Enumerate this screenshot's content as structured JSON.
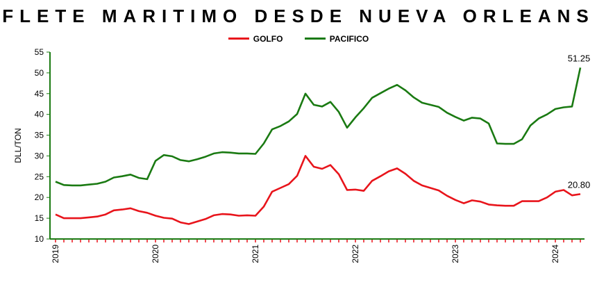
{
  "chart_data": {
    "type": "line",
    "title": "FLETE MARITIMO DESDE NUEVA ORLEANS",
    "ylabel": "DLL/TON",
    "xlabel": "",
    "ylim": [
      10,
      55
    ],
    "yticks": [
      10,
      15,
      20,
      25,
      30,
      35,
      40,
      45,
      50,
      55
    ],
    "xticks": [
      "2019",
      "2020",
      "2021",
      "2022",
      "2023",
      "2024"
    ],
    "x_start": "2019-01",
    "x_step": "month",
    "legend_position": "top-center",
    "grid": false,
    "colors": {
      "GOLFO": "#e8141b",
      "PACIFICO": "#1a7a12",
      "axis": "#1a7a12"
    },
    "series": [
      {
        "name": "GOLFO",
        "values": [
          15.9,
          15.0,
          15.0,
          15.0,
          15.2,
          15.4,
          15.9,
          16.9,
          17.1,
          17.4,
          16.7,
          16.3,
          15.6,
          15.1,
          14.9,
          14.0,
          13.6,
          14.2,
          14.8,
          15.7,
          16.0,
          15.9,
          15.6,
          15.7,
          15.6,
          17.8,
          21.4,
          22.3,
          23.2,
          25.2,
          30.0,
          27.4,
          26.9,
          27.8,
          25.6,
          21.8,
          21.9,
          21.6,
          24.0,
          25.1,
          26.3,
          27.0,
          25.7,
          24.0,
          22.9,
          22.3,
          21.7,
          20.4,
          19.4,
          18.6,
          19.3,
          19.0,
          18.3,
          18.1,
          18.0,
          18.0,
          19.1,
          19.1,
          19.1,
          20.0,
          21.4,
          21.8,
          20.5,
          20.8
        ],
        "last_label": "20.80"
      },
      {
        "name": "PACIFICO",
        "values": [
          23.8,
          23.0,
          22.9,
          22.9,
          23.1,
          23.3,
          23.8,
          24.8,
          25.1,
          25.5,
          24.7,
          24.4,
          28.8,
          30.2,
          29.9,
          29.0,
          28.7,
          29.2,
          29.8,
          30.6,
          30.9,
          30.8,
          30.6,
          30.6,
          30.5,
          33.0,
          36.4,
          37.2,
          38.3,
          40.1,
          45.0,
          42.3,
          41.9,
          43.0,
          40.6,
          36.8,
          39.3,
          41.5,
          44.0,
          45.1,
          46.2,
          47.1,
          45.8,
          44.1,
          42.8,
          42.3,
          41.8,
          40.4,
          39.4,
          38.5,
          39.2,
          39.0,
          37.8,
          33.0,
          32.9,
          32.9,
          34.0,
          37.3,
          39.0,
          40.0,
          41.3,
          41.7,
          41.9,
          51.25
        ],
        "last_label": "51.25"
      }
    ]
  }
}
